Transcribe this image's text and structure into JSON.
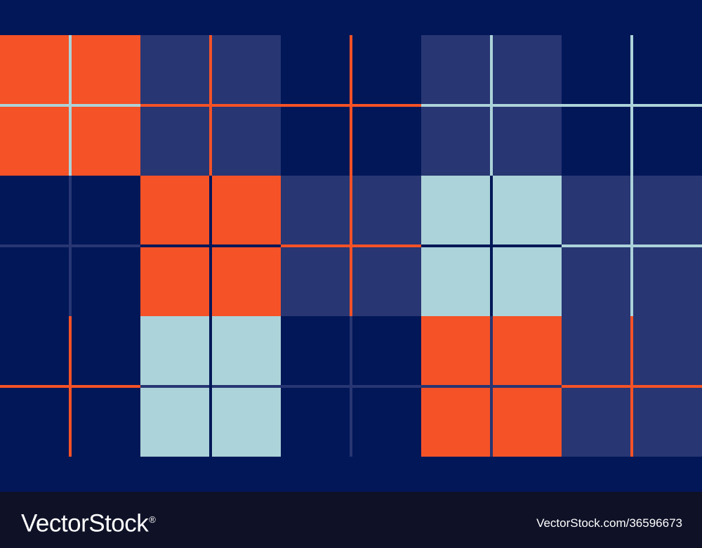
{
  "colors": {
    "background": "#021758",
    "navy": "#021758",
    "mid_blue": "#283673",
    "orange": "#f55227",
    "light_blue": "#acd3d9",
    "footer_bg": "#0f1227",
    "footer_text": "#ffffff"
  },
  "pattern": {
    "rows": [
      [
        "orange",
        "mid_blue",
        "navy",
        "mid_blue",
        "navy"
      ],
      [
        "navy",
        "orange",
        "mid_blue",
        "light_blue",
        "mid_blue"
      ],
      [
        "navy",
        "light_blue",
        "navy",
        "orange",
        "mid_blue"
      ]
    ],
    "horizontal_lines": [
      [
        "light_blue",
        "orange",
        "orange",
        "light_blue",
        "light_blue"
      ],
      [
        "mid_blue",
        "navy",
        "orange",
        "navy",
        "light_blue"
      ],
      [
        "orange",
        "mid_blue",
        "mid_blue",
        "mid_blue",
        "orange"
      ]
    ],
    "vertical_lines": [
      [
        "light_blue",
        "mid_blue",
        "orange"
      ],
      [
        "orange",
        "navy",
        "navy"
      ],
      [
        "orange",
        "orange",
        "mid_blue"
      ],
      [
        "light_blue",
        "navy",
        "mid_blue"
      ],
      [
        "light_blue",
        "light_blue",
        "orange"
      ]
    ]
  },
  "footer": {
    "brand": "VectorStock",
    "brand_mark": "®",
    "image_id": "VectorStock.com/36596673"
  }
}
